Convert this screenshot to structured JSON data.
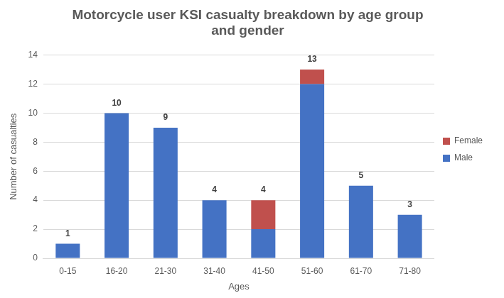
{
  "chart_data": {
    "type": "bar",
    "title": [
      "Motorcycle user KSI casualty breakdown by age group",
      "and gender"
    ],
    "x_label": "Ages",
    "y_label": "Number of casualties",
    "categories": [
      "0-15",
      "16-20",
      "21-30",
      "31-40",
      "41-50",
      "51-60",
      "61-70",
      "71-80"
    ],
    "series": [
      {
        "name": "Male",
        "color": "#4472c4",
        "values": [
          1,
          10,
          9,
          4,
          2,
          12,
          5,
          3
        ]
      },
      {
        "name": "Female",
        "color": "#c0504d",
        "values": [
          0,
          0,
          0,
          0,
          2,
          1,
          0,
          0
        ]
      }
    ],
    "totals": [
      1,
      10,
      9,
      4,
      4,
      13,
      5,
      3
    ],
    "stacked": true,
    "ylim": [
      0,
      14
    ],
    "yticks": [
      0,
      2,
      4,
      6,
      8,
      10,
      12,
      14
    ],
    "grid": true,
    "legend": "right"
  }
}
